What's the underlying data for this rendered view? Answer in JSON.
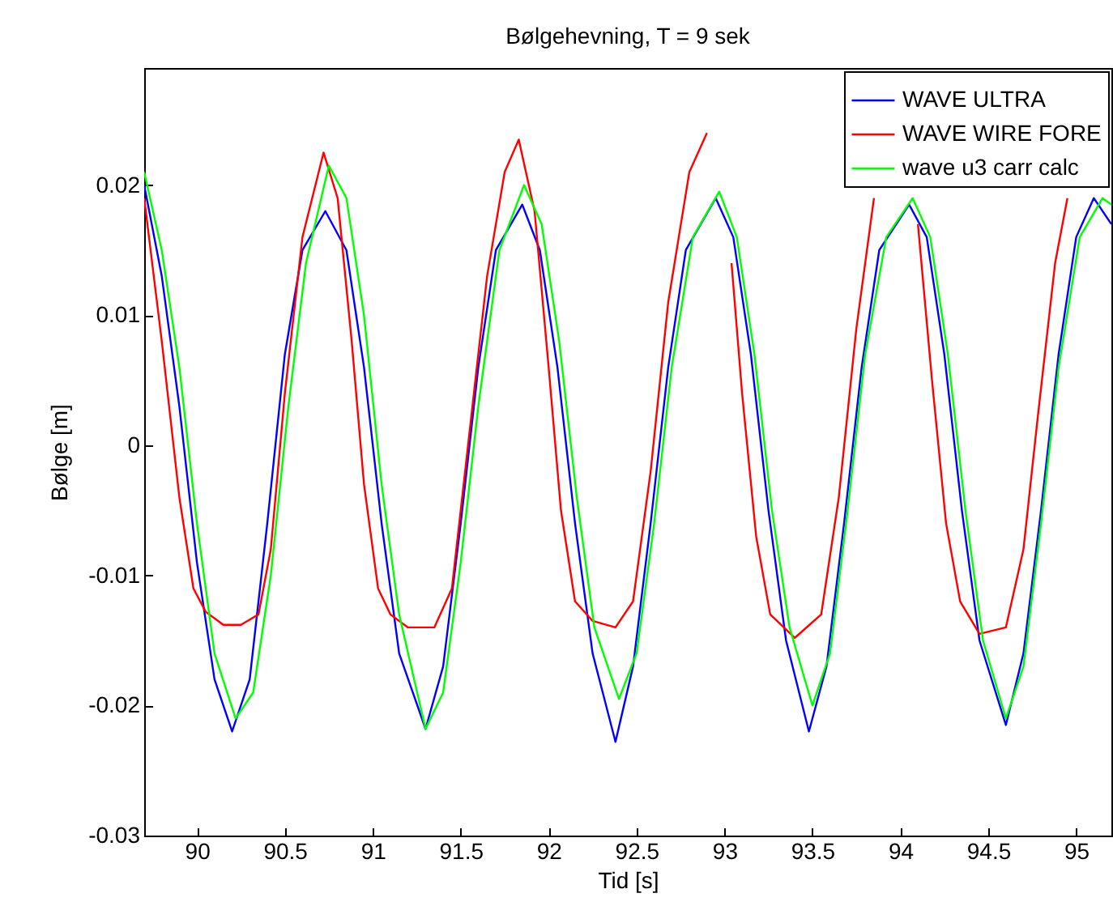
{
  "chart_data": {
    "type": "line",
    "title": "Bølgehevning, T = 9 sek",
    "xlabel": "Tid [s]",
    "ylabel": "Bølge [m]",
    "xlim": [
      89.7,
      95.2
    ],
    "xticks": [
      90,
      90.5,
      91,
      91.5,
      92,
      92.5,
      93,
      93.5,
      94,
      94.5,
      95
    ],
    "ylim": [
      -0.03,
      0.029
    ],
    "yticks": [
      -0.03,
      -0.02,
      -0.01,
      0,
      0.01,
      0.02
    ],
    "grid": false,
    "legend": "top right",
    "series": [
      {
        "name": "WAVE ULTRA",
        "color": "#0000ff",
        "x": [
          89.7,
          89.8,
          89.9,
          90.0,
          90.1,
          90.2,
          90.3,
          90.4,
          90.5,
          90.6,
          90.73,
          90.85,
          90.95,
          91.05,
          91.15,
          91.3,
          91.4,
          91.5,
          91.6,
          91.7,
          91.85,
          91.95,
          92.05,
          92.15,
          92.25,
          92.38,
          92.48,
          92.58,
          92.68,
          92.78,
          92.95,
          93.05,
          93.15,
          93.25,
          93.35,
          93.48,
          93.58,
          93.68,
          93.78,
          93.88,
          94.05,
          94.15,
          94.25,
          94.35,
          94.45,
          94.6,
          94.7,
          94.8,
          94.9,
          95.0,
          95.1,
          95.2
        ],
        "values": [
          0.02,
          0.013,
          0.003,
          -0.009,
          -0.018,
          -0.022,
          -0.018,
          -0.006,
          0.007,
          0.015,
          0.018,
          0.015,
          0.006,
          -0.006,
          -0.016,
          -0.0218,
          -0.017,
          -0.006,
          0.006,
          0.015,
          0.0185,
          0.015,
          0.006,
          -0.006,
          -0.016,
          -0.0228,
          -0.017,
          -0.006,
          0.006,
          0.015,
          0.019,
          0.016,
          0.007,
          -0.005,
          -0.015,
          -0.022,
          -0.017,
          -0.006,
          0.006,
          0.015,
          0.0185,
          0.016,
          0.007,
          -0.005,
          -0.015,
          -0.0215,
          -0.016,
          -0.005,
          0.007,
          0.016,
          0.019,
          0.017
        ]
      },
      {
        "name": "WAVE WIRE FORE",
        "color": "#ff0000",
        "x": [
          89.7,
          89.8,
          89.9,
          89.98,
          90.05,
          90.15,
          90.25,
          90.35,
          90.42,
          90.5,
          90.6,
          90.72,
          90.8,
          90.88,
          90.95,
          91.03,
          91.1,
          91.2,
          91.35,
          91.45,
          91.55,
          91.65,
          91.75,
          91.83,
          91.92,
          92.0,
          92.07,
          92.15,
          92.25,
          92.38,
          92.48,
          92.58,
          92.68,
          92.8,
          92.9,
          93.0,
          93.04,
          93.1,
          93.18,
          93.26,
          93.4,
          93.55,
          93.65,
          93.75,
          93.85,
          94.0,
          94.1,
          94.18,
          94.26,
          94.34,
          94.45,
          94.6,
          94.7,
          94.78,
          94.88,
          94.95
        ],
        "values": [
          0.019,
          0.008,
          -0.004,
          -0.011,
          -0.0128,
          -0.0138,
          -0.0138,
          -0.013,
          -0.008,
          0.004,
          0.016,
          0.0225,
          0.019,
          0.008,
          -0.003,
          -0.011,
          -0.013,
          -0.014,
          -0.014,
          -0.011,
          0.001,
          0.013,
          0.021,
          0.0235,
          0.018,
          0.006,
          -0.005,
          -0.012,
          -0.0135,
          -0.014,
          -0.012,
          -0.002,
          0.011,
          0.021,
          0.024,
          null,
          0.014,
          0.004,
          -0.007,
          -0.013,
          -0.0148,
          -0.013,
          -0.004,
          0.009,
          0.019,
          null,
          0.017,
          0.005,
          -0.006,
          -0.012,
          -0.0145,
          -0.014,
          -0.008,
          0.002,
          0.014,
          0.019
        ]
      },
      {
        "name": "wave u3 carr calc",
        "color": "#00ff00",
        "x": [
          89.7,
          89.8,
          89.9,
          90.0,
          90.1,
          90.22,
          90.32,
          90.42,
          90.52,
          90.62,
          90.75,
          90.85,
          90.95,
          91.05,
          91.15,
          91.3,
          91.4,
          91.5,
          91.6,
          91.72,
          91.86,
          91.96,
          92.06,
          92.16,
          92.26,
          92.4,
          92.5,
          92.6,
          92.7,
          92.82,
          92.97,
          93.07,
          93.17,
          93.27,
          93.37,
          93.5,
          93.6,
          93.7,
          93.8,
          93.92,
          94.07,
          94.17,
          94.27,
          94.37,
          94.47,
          94.6,
          94.7,
          94.8,
          94.9,
          95.02,
          95.15,
          95.2
        ],
        "values": [
          0.021,
          0.015,
          0.006,
          -0.006,
          -0.016,
          -0.021,
          -0.019,
          -0.01,
          0.003,
          0.014,
          0.0215,
          0.019,
          0.01,
          -0.003,
          -0.013,
          -0.0218,
          -0.019,
          -0.009,
          0.003,
          0.015,
          0.02,
          0.017,
          0.008,
          -0.004,
          -0.014,
          -0.0195,
          -0.016,
          -0.006,
          0.006,
          0.016,
          0.0195,
          0.016,
          0.007,
          -0.005,
          -0.014,
          -0.02,
          -0.016,
          -0.005,
          0.007,
          0.016,
          0.019,
          0.016,
          0.007,
          -0.005,
          -0.015,
          -0.021,
          -0.017,
          -0.006,
          0.006,
          0.016,
          0.019,
          0.0185
        ]
      }
    ]
  }
}
